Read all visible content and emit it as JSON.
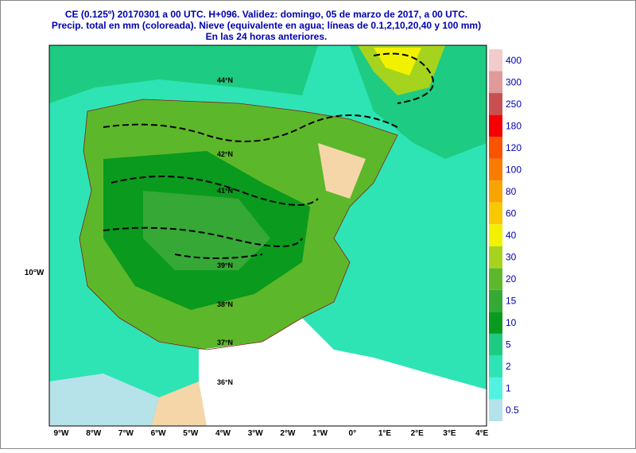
{
  "header": {
    "lines": [
      "CE (0.125º) 20170301 a 00 UTC.  H+096. Validez: domingo, 05 de marzo de 2017,  a  00 UTC.",
      "Precip. total en mm (coloreada). Nieve (equivalente en agua; líneas de 0.1,2,10,20,40 y 100 mm)",
      "En las 24 horas anteriores."
    ]
  },
  "colorbar": {
    "levels": [
      {
        "value": 0.5,
        "color": "#b6e2ea"
      },
      {
        "value": 1,
        "color": "#52f2e2"
      },
      {
        "value": 2,
        "color": "#2ee4b4"
      },
      {
        "value": 5,
        "color": "#1ecb82"
      },
      {
        "value": 10,
        "color": "#0a9a1e"
      },
      {
        "value": 15,
        "color": "#36a836"
      },
      {
        "value": 20,
        "color": "#5cb82a"
      },
      {
        "value": 30,
        "color": "#a6d41e"
      },
      {
        "value": 40,
        "color": "#f2f200"
      },
      {
        "value": 60,
        "color": "#f8c800"
      },
      {
        "value": 80,
        "color": "#f8a400"
      },
      {
        "value": 100,
        "color": "#f87c00"
      },
      {
        "value": 120,
        "color": "#f85400"
      },
      {
        "value": 180,
        "color": "#f40000"
      },
      {
        "value": 250,
        "color": "#c85050"
      },
      {
        "value": 300,
        "color": "#e09a9a"
      },
      {
        "value": 400,
        "color": "#f2cccc"
      }
    ]
  },
  "lon_labels": [
    "9°W",
    "8°W",
    "7°W",
    "6°W",
    "5°W",
    "4°W",
    "3°W",
    "2°W",
    "1°W",
    "0°",
    "1°E",
    "2°E",
    "3°E",
    "4°E"
  ],
  "left_label": "10°W",
  "lat_labels": [
    "44°N",
    "42°N",
    "41°N",
    "39°N",
    "38°N",
    "37°N",
    "36°N"
  ]
}
